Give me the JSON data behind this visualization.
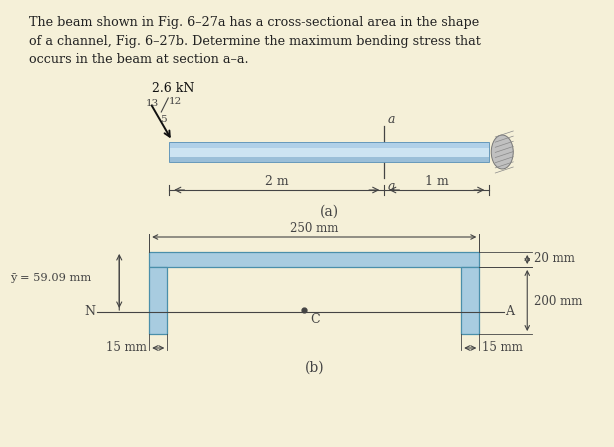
{
  "bg_color": "#f5f0d8",
  "text_color": "#222222",
  "title_text": "The beam shown in Fig. 6–27a has a cross-sectional area in the shape\nof a channel, Fig. 6–27b. Determine the maximum bending stress that\noccurs in the beam at section a–a.",
  "load_label": "2.6 kN",
  "ratio_13": "13",
  "ratio_12": "12",
  "ratio_5": "5",
  "label_a_top": "a",
  "label_a_bot": "a",
  "dim_2m": "2 m",
  "dim_1m": "1 m",
  "sub_a": "(a)",
  "sub_b": "(b)",
  "dim_250mm": "250 mm",
  "label_ybar": "ȳ = 59.09 mm",
  "label_N": "N",
  "label_C": "C",
  "label_A": "A",
  "dim_20mm": "20 mm",
  "dim_200mm": "200 mm",
  "dim_15mm_left": "15 mm",
  "dim_15mm_right": "15 mm",
  "beam_color_top": "#d0e8f5",
  "beam_color_main": "#b8d8ee",
  "beam_color_bot": "#a0c8e4",
  "channel_color": "#a8cce0",
  "wall_color": "#aaaaaa",
  "line_color": "#444444"
}
